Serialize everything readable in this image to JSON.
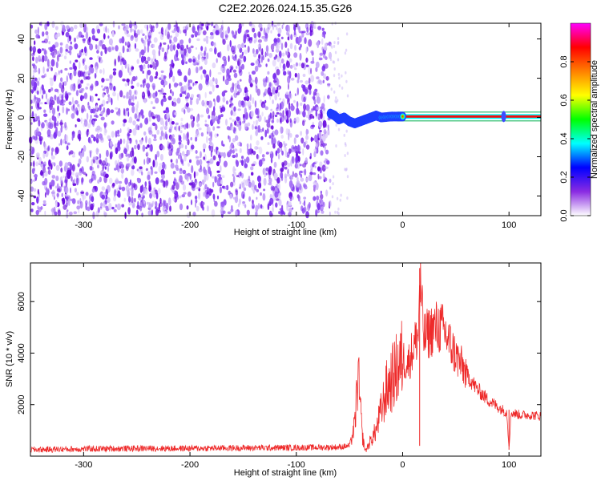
{
  "title": "C2E2.2026.024.15.35.G26",
  "chart_data": [
    {
      "type": "heatmap",
      "xlabel": "Height of straight line (km)",
      "ylabel": "Frequency (Hz)",
      "xlim": [
        -350,
        130
      ],
      "ylim": [
        -50,
        48
      ],
      "xticks": [
        -300,
        -200,
        -100,
        0,
        100
      ],
      "xtick_labels": [
        "-300",
        "-200",
        "-100",
        "0",
        "100"
      ],
      "yticks": [
        -40,
        -20,
        0,
        20,
        40
      ],
      "ytick_labels": [
        "-40",
        "-20",
        "0",
        "20",
        "40"
      ],
      "noise_region_x": [
        -350,
        -68
      ],
      "signal_track": [
        {
          "x": -68,
          "y": 2
        },
        {
          "x": -64,
          "y": 1
        },
        {
          "x": -60,
          "y": -1
        },
        {
          "x": -55,
          "y": 0
        },
        {
          "x": -50,
          "y": -2
        },
        {
          "x": -45,
          "y": -3
        },
        {
          "x": -40,
          "y": -2
        },
        {
          "x": -35,
          "y": -1
        },
        {
          "x": -30,
          "y": 0
        },
        {
          "x": -25,
          "y": 1
        },
        {
          "x": -20,
          "y": 0
        },
        {
          "x": -10,
          "y": 0.5
        },
        {
          "x": 0,
          "y": 0.5
        },
        {
          "x": 95,
          "y": 0.5
        },
        {
          "x": 130,
          "y": 0.5
        }
      ],
      "colorbar": {
        "label": "Normalized spectral amplitude",
        "range": [
          0,
          1
        ],
        "ticks": [
          0.0,
          0.2,
          0.4,
          0.6,
          0.8
        ],
        "tick_labels": [
          "0.0",
          "0.2",
          "0.4",
          "0.6",
          "0.8"
        ],
        "colors": [
          "#ffffff",
          "#8a2be2",
          "#0000ff",
          "#00ffff",
          "#00ff00",
          "#ffff00",
          "#ff8000",
          "#ff0000",
          "#ff00ff"
        ]
      },
      "grid": false
    },
    {
      "type": "line",
      "xlabel": "Height of straight line (km)",
      "ylabel": "SNR (10 * v/v)",
      "xlim": [
        -350,
        130
      ],
      "ylim": [
        0,
        7500
      ],
      "xticks": [
        -300,
        -200,
        -100,
        0,
        100
      ],
      "xtick_labels": [
        "-300",
        "-200",
        "-100",
        "0",
        "100"
      ],
      "yticks": [
        2000,
        4000,
        6000
      ],
      "ytick_labels": [
        "2000",
        "4000",
        "6000"
      ],
      "series": [
        {
          "color": "#ee2a2a",
          "x": [
            -350,
            -300,
            -250,
            -200,
            -150,
            -100,
            -60,
            -50,
            -45,
            -42,
            -40,
            -38,
            -35,
            -30,
            -25,
            -20,
            -15,
            -10,
            -5,
            0,
            5,
            10,
            15,
            16,
            20,
            25,
            30,
            35,
            40,
            45,
            50,
            60,
            70,
            80,
            90,
            98,
            100,
            102,
            110,
            120,
            130
          ],
          "y": [
            250,
            280,
            300,
            300,
            320,
            330,
            350,
            400,
            1200,
            3200,
            2000,
            800,
            200,
            600,
            1000,
            1800,
            2600,
            3000,
            3400,
            3800,
            3600,
            4200,
            4800,
            7000,
            4600,
            4800,
            5000,
            5000,
            4800,
            4300,
            3900,
            3200,
            2600,
            2200,
            1900,
            1700,
            300,
            1700,
            1600,
            1600,
            1550
          ]
        }
      ],
      "grid": false
    }
  ]
}
